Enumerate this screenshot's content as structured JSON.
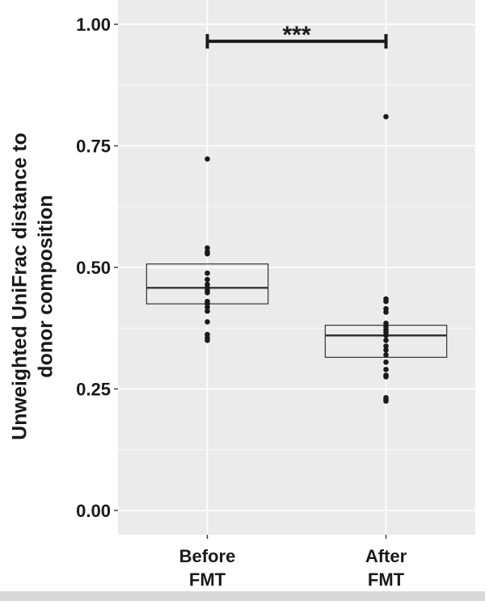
{
  "chart_data": {
    "type": "box",
    "categories": [
      "Before\nFMT",
      "After\nFMT"
    ],
    "ylabel_lines": [
      "Unweighted UniFrac distance to",
      "donor composition"
    ],
    "xlabel": "",
    "title": "",
    "ylim": [
      -0.05,
      1.05
    ],
    "yticks": [
      0.0,
      0.25,
      0.5,
      0.75,
      1.0
    ],
    "ytick_labels": [
      "0.00",
      "0.25",
      "0.50",
      "0.75",
      "1.00"
    ],
    "grid": true,
    "boxes": [
      {
        "q1": 0.425,
        "median": 0.458,
        "q3": 0.507
      },
      {
        "q1": 0.315,
        "median": 0.36,
        "q3": 0.381
      }
    ],
    "points": [
      [
        0.723,
        0.54,
        0.532,
        0.528,
        0.488,
        0.475,
        0.465,
        0.458,
        0.452,
        0.448,
        0.43,
        0.425,
        0.418,
        0.41,
        0.388,
        0.362,
        0.355,
        0.35
      ],
      [
        0.81,
        0.435,
        0.43,
        0.415,
        0.408,
        0.385,
        0.378,
        0.372,
        0.366,
        0.36,
        0.35,
        0.338,
        0.33,
        0.32,
        0.305,
        0.29,
        0.278,
        0.275,
        0.232,
        0.228,
        0.225
      ]
    ],
    "significance": {
      "label": "***",
      "y": 0.965
    },
    "colors": {
      "panel_bg": "#ebebeb",
      "grid": "#ffffff",
      "box_line": "#333333",
      "point": "#1a1a1a",
      "text": "#1a1a1a"
    }
  }
}
